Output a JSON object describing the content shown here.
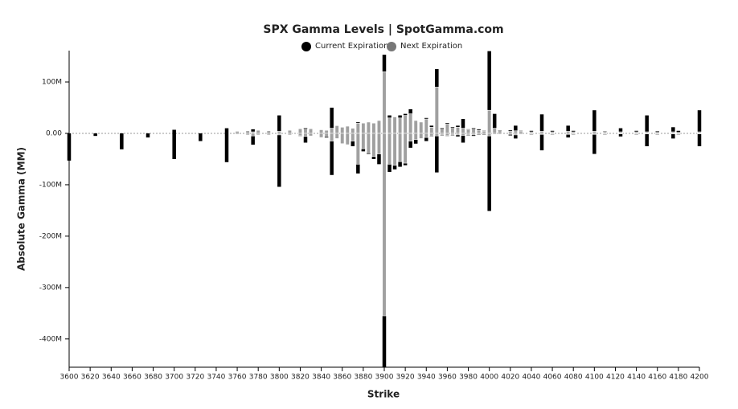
{
  "chart_data": {
    "type": "bar",
    "title": "SPX Gamma Levels | SpotGamma.com",
    "x_label": "Strike",
    "y_label": "Absolute Gamma (MM)",
    "x": [
      3600,
      3625,
      3650,
      3675,
      3700,
      3725,
      3750,
      3760,
      3770,
      3775,
      3780,
      3790,
      3800,
      3810,
      3820,
      3825,
      3830,
      3840,
      3845,
      3850,
      3855,
      3860,
      3865,
      3870,
      3875,
      3880,
      3885,
      3890,
      3895,
      3900,
      3905,
      3910,
      3915,
      3920,
      3925,
      3930,
      3935,
      3940,
      3945,
      3950,
      3955,
      3960,
      3965,
      3970,
      3975,
      3980,
      3985,
      3990,
      3995,
      4000,
      4005,
      4010,
      4020,
      4025,
      4030,
      4040,
      4050,
      4060,
      4075,
      4080,
      4100,
      4110,
      4125,
      4140,
      4150,
      4160,
      4175,
      4180,
      4200
    ],
    "series": [
      {
        "name": "Current Expiration",
        "color": "#000000",
        "values": [
          0,
          0,
          0,
          0,
          7,
          0,
          10,
          2,
          3,
          8,
          3,
          3,
          35,
          3,
          8,
          10,
          7,
          6,
          5,
          50,
          5,
          8,
          7,
          9,
          22,
          8,
          10,
          12,
          20,
          153,
          35,
          30,
          35,
          38,
          47,
          20,
          15,
          30,
          15,
          125,
          10,
          20,
          12,
          15,
          28,
          8,
          10,
          8,
          5,
          160,
          38,
          6,
          6,
          15,
          5,
          5,
          37,
          5,
          15,
          5,
          45,
          4,
          10,
          5,
          35,
          4,
          12,
          5,
          45
        ],
        "negative_values": [
          -53,
          -5,
          -31,
          -8,
          -50,
          -15,
          -56,
          -2,
          -3,
          -22,
          -3,
          -3,
          -104,
          -3,
          -5,
          -18,
          -5,
          -7,
          -8,
          -81,
          -10,
          -18,
          -20,
          -25,
          -78,
          -35,
          -40,
          -50,
          -60,
          -455,
          -75,
          -70,
          -65,
          -62,
          -28,
          -20,
          -10,
          -15,
          -6,
          -76,
          -4,
          -5,
          -4,
          -6,
          -18,
          -4,
          -5,
          -3,
          -3,
          -151,
          -2,
          -2,
          -4,
          -10,
          -2,
          -2,
          -33,
          -2,
          -8,
          -2,
          -40,
          -2,
          -6,
          -2,
          -25,
          -2,
          -10,
          -2,
          -25
        ]
      },
      {
        "name": "Next Expiration",
        "color": "#a0a0a0",
        "values": [
          0,
          0,
          0,
          0,
          0,
          0,
          0,
          4,
          5,
          3,
          6,
          5,
          4,
          6,
          9,
          8,
          9,
          7,
          6,
          10,
          15,
          12,
          14,
          10,
          20,
          20,
          22,
          20,
          25,
          120,
          30,
          32,
          30,
          35,
          38,
          25,
          22,
          28,
          12,
          90,
          8,
          18,
          10,
          12,
          10,
          7,
          8,
          6,
          4,
          45,
          10,
          5,
          4,
          5,
          4,
          3,
          4,
          3,
          4,
          3,
          4,
          3,
          3,
          3,
          3,
          2,
          3,
          2,
          3
        ],
        "negative_values": [
          0,
          0,
          0,
          0,
          0,
          0,
          0,
          -2,
          -3,
          -5,
          -3,
          -3,
          -3,
          -3,
          -4,
          -6,
          -5,
          -8,
          -6,
          -15,
          -10,
          -20,
          -22,
          -15,
          -60,
          -30,
          -38,
          -45,
          -40,
          -355,
          -60,
          -62,
          -55,
          -58,
          -15,
          -12,
          -10,
          -8,
          -5,
          -5,
          -3,
          -4,
          -3,
          -3,
          -4,
          -3,
          -3,
          -2,
          -2,
          -5,
          -2,
          -2,
          -2,
          -3,
          -2,
          -1,
          -2,
          -1,
          -2,
          -1,
          -2,
          -1,
          -1,
          -1,
          -1,
          -1,
          -1,
          -1,
          -1
        ]
      }
    ],
    "xlim": [
      3600,
      4200
    ],
    "xticks": [
      3600,
      3620,
      3640,
      3660,
      3680,
      3700,
      3720,
      3740,
      3760,
      3780,
      3800,
      3820,
      3840,
      3860,
      3880,
      3900,
      3920,
      3940,
      3960,
      3980,
      4000,
      4020,
      4040,
      4060,
      4080,
      4100,
      4120,
      4140,
      4160,
      4180,
      4200
    ],
    "ylim": [
      -455,
      161
    ],
    "yticks": [
      {
        "value": 100,
        "label": "100M"
      },
      {
        "value": 0,
        "label": "0.00"
      },
      {
        "value": -100,
        "label": "-100M"
      },
      {
        "value": -200,
        "label": "-200M"
      },
      {
        "value": -300,
        "label": "-300M"
      },
      {
        "value": -400,
        "label": "-400M"
      }
    ]
  }
}
